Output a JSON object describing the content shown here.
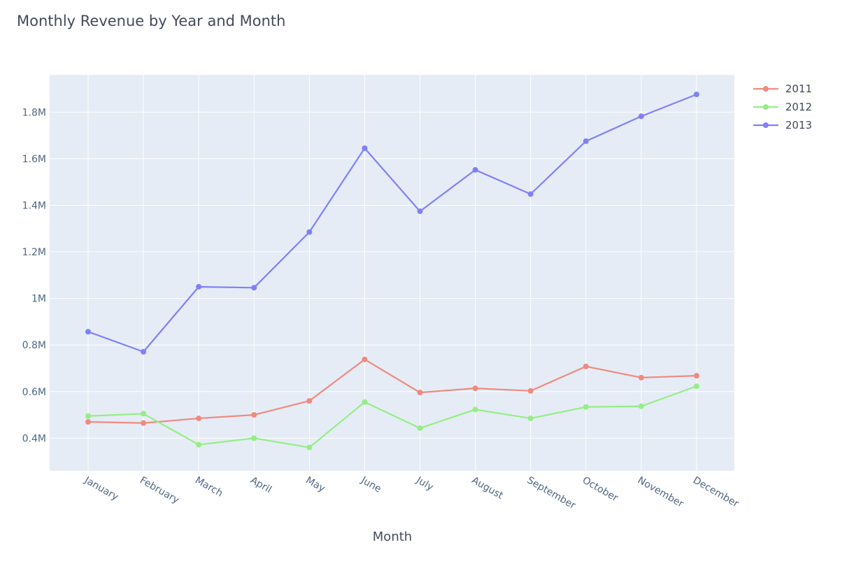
{
  "chart_data": {
    "type": "line",
    "title": "Monthly Revenue by Year and Month",
    "xlabel": "Month",
    "ylabel": "",
    "categories": [
      "January",
      "February",
      "March",
      "April",
      "May",
      "June",
      "July",
      "August",
      "September",
      "October",
      "November",
      "December"
    ],
    "ylim": [
      0.26,
      1.96
    ],
    "y_ticks": [
      0.4,
      0.6,
      0.8,
      1.0,
      1.2,
      1.4,
      1.6,
      1.8
    ],
    "y_tick_labels": [
      "0.4M",
      "0.6M",
      "0.8M",
      "1M",
      "1.2M",
      "1.4M",
      "1.6M",
      "1.8M"
    ],
    "grid": true,
    "legend_position": "top-right",
    "series": [
      {
        "name": "2011",
        "color": "#ef8a7f",
        "values": [
          0.47,
          0.465,
          0.485,
          0.5,
          0.56,
          0.738,
          0.596,
          0.614,
          0.603,
          0.708,
          0.66,
          0.668
        ]
      },
      {
        "name": "2012",
        "color": "#95ee85",
        "values": [
          0.495,
          0.505,
          0.372,
          0.4,
          0.36,
          0.555,
          0.443,
          0.523,
          0.485,
          0.534,
          0.537,
          0.623
        ]
      },
      {
        "name": "2013",
        "color": "#8080f8",
        "values": [
          0.857,
          0.771,
          1.05,
          1.046,
          1.285,
          1.645,
          1.374,
          1.552,
          1.448,
          1.675,
          1.782,
          1.876
        ]
      }
    ]
  }
}
